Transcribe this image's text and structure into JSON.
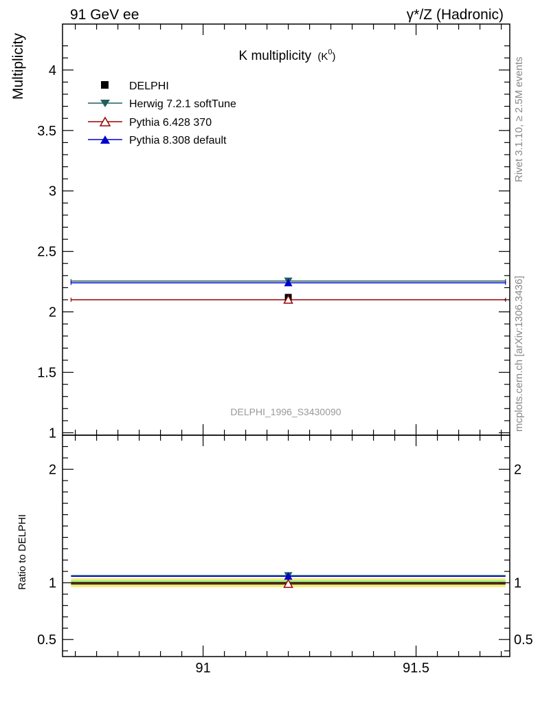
{
  "header": {
    "left": "91 GeV ee",
    "right": "γ*/Z (Hadronic)"
  },
  "side_text": {
    "rivet": "Rivet 3.1.10, ≥ 2.5M events",
    "mcplots": "mcplots.cern.ch [arXiv:1306.3436]"
  },
  "chart_data": [
    {
      "type": "scatter",
      "title": "K multiplicity (K⁰)",
      "title_main": "K multiplicity",
      "title_sub": "(K",
      "title_sup": "0",
      "title_close": ")",
      "ylabel": "Multiplicity",
      "xlim": [
        90.67,
        91.72
      ],
      "ylim": [
        0.98,
        4.38
      ],
      "yticks": [
        1,
        1.5,
        2,
        2.5,
        3,
        3.5,
        4
      ],
      "ytick_labels": [
        "1",
        "1.5",
        "2",
        "2.5",
        "3",
        "3.5",
        "4"
      ],
      "watermark": "DELPHI_1996_S3430090",
      "legend_placement": "top-left",
      "series": [
        {
          "name": "DELPHI",
          "x": [
            91.2
          ],
          "y": [
            2.12
          ],
          "marker": "square",
          "color": "#000000"
        },
        {
          "name": "Herwig 7.2.1 softTune",
          "x": [
            91.2
          ],
          "y": [
            2.255
          ],
          "xerr": [
            90.69,
            91.71
          ],
          "marker": "triangle-down",
          "color": "#1f5f5f"
        },
        {
          "name": "Pythia 6.428 370",
          "x": [
            91.2
          ],
          "y": [
            2.1
          ],
          "xerr": [
            90.69,
            91.71
          ],
          "marker": "triangle-up-open",
          "color": "#990000"
        },
        {
          "name": "Pythia 8.308 default",
          "x": [
            91.2
          ],
          "y": [
            2.24
          ],
          "xerr": [
            90.69,
            91.71
          ],
          "marker": "triangle-up",
          "color": "#0000cc"
        }
      ]
    },
    {
      "type": "scatter",
      "ylabel": "Ratio to DELPHI",
      "xlim": [
        90.67,
        91.72
      ],
      "ylim": [
        0.35,
        2.3
      ],
      "yticks": [
        0.5,
        1,
        2
      ],
      "ytick_labels": [
        "0.5",
        "1",
        "2"
      ],
      "xticks": [
        91,
        91.5
      ],
      "xtick_labels": [
        "91",
        "91.5"
      ],
      "band": {
        "outer": [
          0.96,
          1.04
        ],
        "inner": [
          0.98,
          1.02
        ],
        "outer_color": "#f0f080",
        "inner_color": "#90e080"
      },
      "series": [
        {
          "name": "Herwig 7.2.1 softTune",
          "x": [
            91.2
          ],
          "y": [
            1.063
          ],
          "color": "#1f5f5f",
          "marker": "triangle-down"
        },
        {
          "name": "Pythia 6.428 370",
          "x": [
            91.2
          ],
          "y": [
            0.99
          ],
          "color": "#990000",
          "marker": "triangle-up-open"
        },
        {
          "name": "Pythia 8.308 default",
          "x": [
            91.2
          ],
          "y": [
            1.057
          ],
          "color": "#0000cc",
          "marker": "triangle-up"
        }
      ]
    }
  ]
}
